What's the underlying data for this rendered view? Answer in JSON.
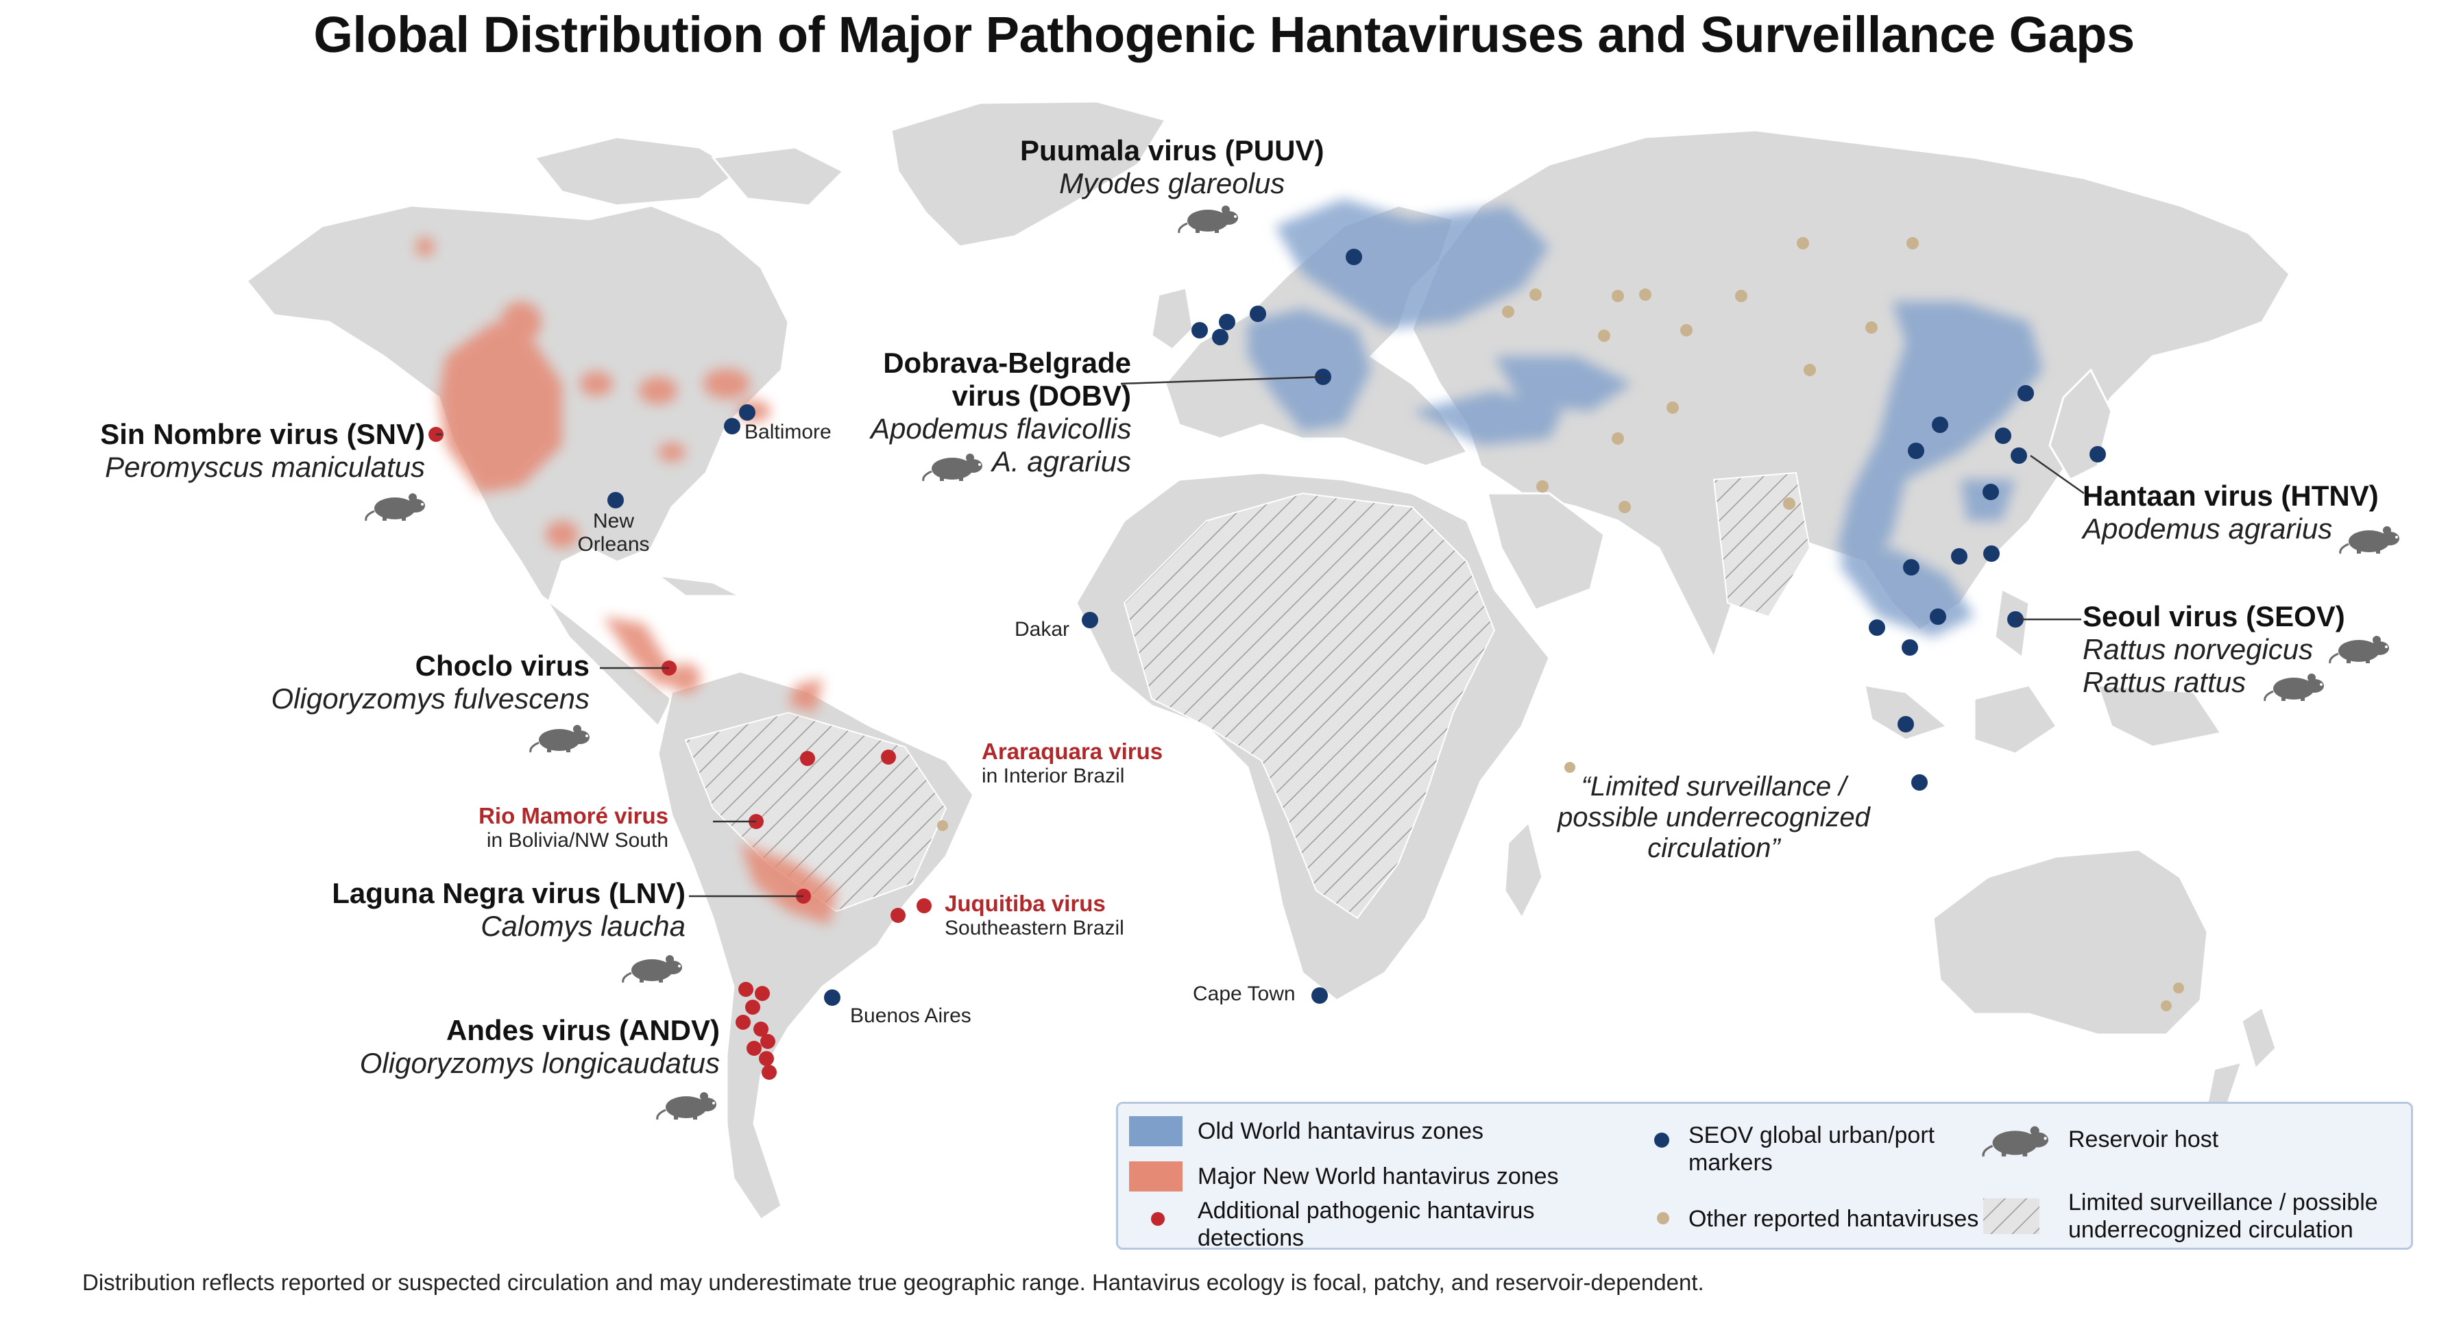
{
  "title": "Global Distribution of Major Pathogenic Hantaviruses and Surveillance Gaps",
  "labels": {
    "puuv": {
      "name": "Puumala virus (PUUV)",
      "host": "Myodes glareolus"
    },
    "dobv": {
      "name1": "Dobrava-Belgrade",
      "name2": "virus (DOBV)",
      "host1": "Apodemus flavicollis",
      "host2": "A. agrarius"
    },
    "snv": {
      "name": "Sin Nombre virus (SNV)",
      "host": "Peromyscus maniculatus"
    },
    "htnv": {
      "name": "Hantaan virus (HTNV)",
      "host": "Apodemus agrarius"
    },
    "seov": {
      "name": "Seoul virus (SEOV)",
      "host1": "Rattus norvegicus",
      "host2": "Rattus rattus"
    },
    "choclo": {
      "name": "Choclo virus",
      "host": "Oligoryzomys fulvescens"
    },
    "araraquara": {
      "name": "Araraquara virus",
      "sub": "in Interior Brazil"
    },
    "rio_mamore": {
      "name": "Rio Mamoré virus",
      "sub": "in Bolivia/NW South"
    },
    "lnv": {
      "name": "Laguna Negra virus (LNV)",
      "host": "Calomys laucha"
    },
    "juquitiba": {
      "name": "Juquitiba virus",
      "sub": "Southeastern Brazil"
    },
    "andv": {
      "name": "Andes virus (ANDV)",
      "host": "Oligoryzomys longicaudatus"
    },
    "gap_note": {
      "line1": "“Limited surveillance /",
      "line2": "possible underrecognized",
      "line3": "circulation”"
    }
  },
  "cities": {
    "baltimore": "Baltimore",
    "new_orleans1": "New",
    "new_orleans2": "Orleans",
    "dakar": "Dakar",
    "cape_town": "Cape Town",
    "buenos_aires": "Buenos Aires"
  },
  "legend": {
    "old_world": "Old World hantavirus zones",
    "new_world": "Major New World hantavirus zones",
    "additional1": "Additional pathogenic hantavirus",
    "additional2": "detections",
    "seov1": "SEOV global urban/port",
    "seov2": "markers",
    "other": "Other reported hantaviruses",
    "reservoir": "Reservoir host",
    "limited1": "Limited surveillance / possible",
    "limited2": "underrecognized circulation"
  },
  "footer": "Distribution reflects reported or suspected circulation and may underestimate true geographic range. Hantavirus ecology is focal, patchy, and reservoir-dependent.",
  "colors": {
    "land": "#d9d9d9",
    "old_world_zone": "#7f9fcb",
    "new_world_zone": "#e58a74",
    "additional_dot": "#c0282d",
    "seov_dot": "#17396b",
    "other_dot": "#c9b38f",
    "hatch": "#9a9a9a",
    "rodent": "#6e6e6e"
  },
  "icons": [
    "rodent-icon"
  ]
}
